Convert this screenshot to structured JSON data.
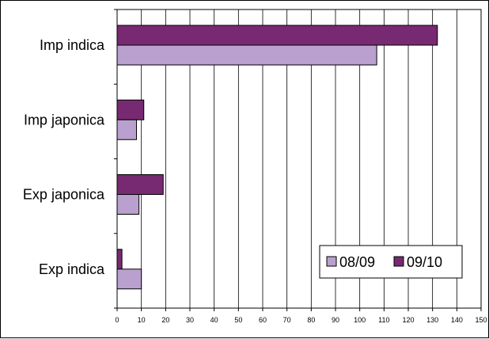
{
  "chart_data": {
    "type": "bar",
    "orientation": "horizontal",
    "categories": [
      "Imp indica",
      "Imp japonica",
      "Exp japonica",
      "Exp indica"
    ],
    "series": [
      {
        "name": "08/09",
        "color": "#b9a0cf",
        "values": [
          107,
          8,
          9,
          10
        ]
      },
      {
        "name": "09/10",
        "color": "#772a72",
        "values": [
          132,
          11,
          19,
          2
        ]
      }
    ],
    "xlim": [
      0,
      150
    ],
    "xticks": [
      0,
      10,
      20,
      30,
      40,
      50,
      60,
      70,
      80,
      90,
      100,
      110,
      120,
      130,
      140,
      150
    ],
    "grid": true,
    "legend_position": "lower-right",
    "title": "",
    "xlabel": "",
    "ylabel": ""
  }
}
